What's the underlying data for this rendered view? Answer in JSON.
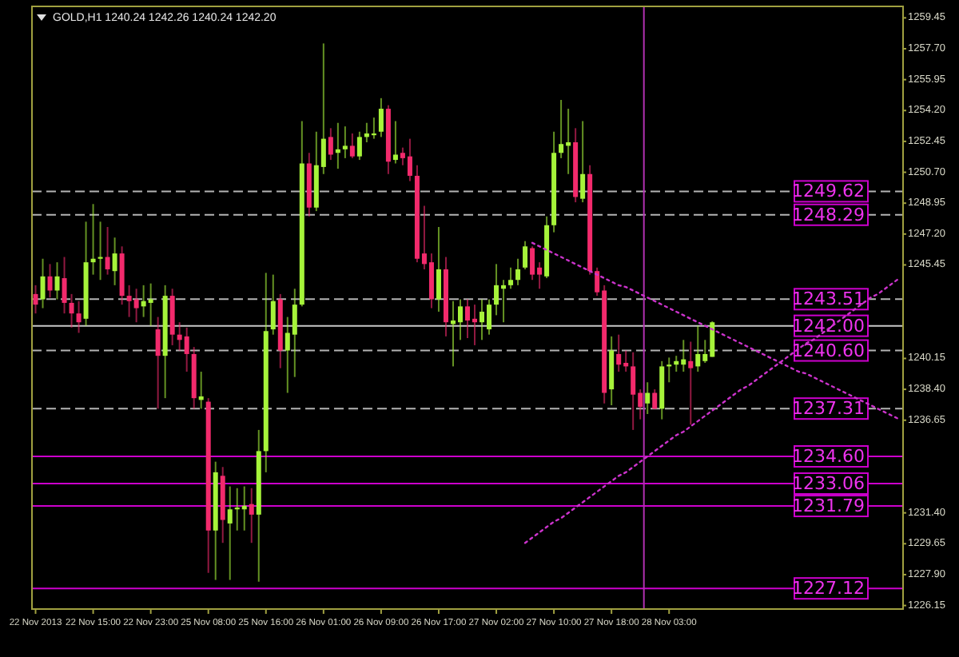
{
  "chart_data": {
    "type": "candlestick",
    "title": "GOLD,H1  1240.24 1242.26 1240.24 1242.20",
    "categories": [
      "22 Nov 2013",
      null,
      null,
      null,
      null,
      null,
      null,
      null,
      "22 Nov 15:00",
      null,
      null,
      null,
      null,
      null,
      null,
      null,
      "22 Nov 23:00",
      null,
      null,
      null,
      null,
      null,
      null,
      null,
      "25 Nov 08:00",
      null,
      null,
      null,
      null,
      null,
      null,
      null,
      "25 Nov 16:00",
      null,
      null,
      null,
      null,
      null,
      null,
      null,
      "26 Nov 01:00",
      null,
      null,
      null,
      null,
      null,
      null,
      null,
      "26 Nov 09:00",
      null,
      null,
      null,
      null,
      null,
      null,
      null,
      "26 Nov 17:00",
      null,
      null,
      null,
      null,
      null,
      null,
      null,
      "27 Nov 02:00",
      null,
      null,
      null,
      null,
      null,
      null,
      null,
      "27 Nov 10:00",
      null,
      null,
      null,
      null,
      null,
      null,
      null,
      "27 Nov 18:00",
      null,
      null,
      null,
      null,
      null,
      null,
      null,
      "28 Nov 03:00",
      null,
      null,
      null,
      null,
      null,
      null,
      null,
      null,
      null,
      null,
      null,
      null,
      null,
      null,
      null,
      null,
      null,
      null,
      null,
      null,
      null,
      null,
      null,
      null,
      null,
      null,
      null,
      null,
      null,
      null,
      null,
      null
    ],
    "colors": [
      "#f22a6c",
      "#a6f33a",
      "#f22a6c",
      "#a6f33a",
      "#f22a6c",
      "#f22a6c",
      "#f22a6c",
      "#a6f33a",
      "#a6f33a",
      "#a6f33a",
      "#f22a6c",
      "#a6f33a",
      "#f22a6c",
      "#f22a6c",
      "#f22a6c",
      "#a6f33a",
      "#a6f33a",
      "#f22a6c",
      "#a6f33a",
      "#f22a6c",
      "#f22a6c",
      "#f22a6c",
      "#f22a6c",
      "#a6f33a",
      "#f22a6c",
      "#a6f33a",
      "#f22a6c",
      "#a6f33a",
      "#a6f33a",
      "#a6f33a",
      "#f22a6c",
      "#a6f33a",
      "#a6f33a",
      "#a6f33a",
      "#f22a6c",
      "#a6f33a",
      "#a6f33a",
      "#a6f33a",
      "#f22a6c",
      "#a6f33a",
      "#a6f33a",
      "#f22a6c",
      "#a6f33a",
      "#a6f33a",
      "#f22a6c",
      "#a6f33a",
      "#a6f33a",
      "#a6f33a",
      "#a6f33a",
      "#f22a6c",
      "#a6f33a",
      "#f22a6c",
      "#f22a6c",
      "#f22a6c",
      "#f22a6c",
      "#f22a6c",
      "#a6f33a",
      "#f22a6c",
      "#a6f33a",
      "#a6f33a",
      "#f22a6c",
      "#f22a6c",
      "#a6f33a",
      "#a6f33a",
      "#a6f33a",
      "#a6f33a",
      "#a6f33a",
      "#a6f33a",
      "#a6f33a",
      "#f22a6c",
      "#f22a6c",
      "#a6f33a",
      "#a6f33a",
      "#a6f33a",
      "#a6f33a",
      "#f22a6c",
      "#a6f33a",
      "#f22a6c",
      "#f22a6c",
      "#f22a6c",
      "#a6f33a",
      "#f22a6c",
      "#f22a6c",
      "#f22a6c",
      "#f22a6c",
      "#a6f33a",
      "#f22a6c",
      "#a6f33a",
      "#a6f33a",
      "#a6f33a",
      "#a6f33a",
      "#f22a6c",
      "#a6f33a",
      "#a6f33a",
      "#a6f33a",
      null,
      null,
      null,
      null,
      null,
      null,
      null,
      null,
      null,
      null,
      null,
      null,
      null,
      null,
      null,
      null,
      null,
      null,
      null,
      null,
      null,
      null,
      null,
      null,
      null,
      null
    ],
    "ohlc": [
      [
        1243.8,
        1244.3,
        1242.7,
        1243.2
      ],
      [
        1243.5,
        1245.8,
        1243.0,
        1244.8
      ],
      [
        1244.8,
        1245.5,
        1243.6,
        1244.0
      ],
      [
        1244.0,
        1245.6,
        1243.5,
        1244.8
      ],
      [
        1244.7,
        1245.9,
        1242.7,
        1243.3
      ],
      [
        1243.3,
        1243.8,
        1241.9,
        1242.7
      ],
      [
        1242.7,
        1243.4,
        1241.6,
        1242.2
      ],
      [
        1242.4,
        1247.9,
        1242.0,
        1245.6
      ],
      [
        1245.6,
        1248.9,
        1244.9,
        1245.8
      ],
      [
        1245.8,
        1247.9,
        1244.6,
        1245.9
      ],
      [
        1245.9,
        1247.6,
        1244.9,
        1245.2
      ],
      [
        1245.1,
        1247.0,
        1244.3,
        1246.1
      ],
      [
        1246.1,
        1246.5,
        1243.2,
        1243.7
      ],
      [
        1243.7,
        1244.3,
        1242.5,
        1243.4
      ],
      [
        1243.5,
        1244.1,
        1242.2,
        1243.0
      ],
      [
        1243.1,
        1244.3,
        1242.5,
        1243.4
      ],
      [
        1243.3,
        1244.4,
        1242.0,
        1243.5
      ],
      [
        1241.8,
        1242.5,
        1237.3,
        1240.3
      ],
      [
        1240.3,
        1244.3,
        1237.9,
        1243.7
      ],
      [
        1243.7,
        1244.1,
        1240.9,
        1241.5
      ],
      [
        1241.5,
        1242.2,
        1240.6,
        1241.2
      ],
      [
        1241.4,
        1241.9,
        1239.4,
        1240.4
      ],
      [
        1240.4,
        1240.8,
        1237.3,
        1237.9
      ],
      [
        1237.8,
        1239.4,
        1237.3,
        1238.0
      ],
      [
        1237.7,
        1237.9,
        1228.0,
        1230.4
      ],
      [
        1230.4,
        1234.3,
        1227.6,
        1233.7
      ],
      [
        1233.5,
        1234.0,
        1229.7,
        1231.0
      ],
      [
        1230.8,
        1232.9,
        1227.6,
        1231.6
      ],
      [
        1231.6,
        1232.8,
        1230.4,
        1231.7
      ],
      [
        1231.6,
        1232.9,
        1230.4,
        1231.8
      ],
      [
        1231.9,
        1232.8,
        1229.7,
        1231.3
      ],
      [
        1231.3,
        1236.1,
        1227.5,
        1234.9
      ],
      [
        1234.9,
        1245.0,
        1233.7,
        1241.7
      ],
      [
        1241.8,
        1244.9,
        1241.5,
        1243.4
      ],
      [
        1243.5,
        1243.8,
        1239.6,
        1240.6
      ],
      [
        1240.6,
        1242.5,
        1238.2,
        1241.6
      ],
      [
        1241.5,
        1244.1,
        1239.1,
        1243.2
      ],
      [
        1243.2,
        1253.6,
        1243.1,
        1251.2
      ],
      [
        1251.2,
        1251.8,
        1248.2,
        1248.7
      ],
      [
        1248.7,
        1253.0,
        1248.5,
        1251.1
      ],
      [
        1251.0,
        1258.0,
        1250.6,
        1252.6
      ],
      [
        1252.7,
        1253.2,
        1251.4,
        1251.7
      ],
      [
        1251.8,
        1253.5,
        1250.9,
        1252.0
      ],
      [
        1252.0,
        1253.3,
        1251.5,
        1252.2
      ],
      [
        1252.2,
        1252.9,
        1251.5,
        1251.6
      ],
      [
        1251.6,
        1253.0,
        1251.4,
        1252.7
      ],
      [
        1252.7,
        1253.5,
        1252.4,
        1252.9
      ],
      [
        1252.8,
        1253.8,
        1252.6,
        1252.9
      ],
      [
        1253.0,
        1254.9,
        1252.7,
        1254.3
      ],
      [
        1254.3,
        1254.5,
        1250.6,
        1251.3
      ],
      [
        1251.4,
        1253.6,
        1251.2,
        1251.7
      ],
      [
        1251.8,
        1252.1,
        1251.1,
        1251.5
      ],
      [
        1251.6,
        1252.6,
        1250.2,
        1250.5
      ],
      [
        1250.5,
        1251.1,
        1245.6,
        1245.8
      ],
      [
        1246.1,
        1248.8,
        1245.2,
        1245.5
      ],
      [
        1245.6,
        1246.1,
        1243.0,
        1243.5
      ],
      [
        1243.5,
        1247.6,
        1242.8,
        1245.2
      ],
      [
        1245.2,
        1245.9,
        1241.4,
        1242.2
      ],
      [
        1242.1,
        1243.4,
        1239.7,
        1242.3
      ],
      [
        1242.2,
        1243.5,
        1241.2,
        1243.1
      ],
      [
        1243.1,
        1243.5,
        1241.3,
        1242.3
      ],
      [
        1242.4,
        1243.2,
        1240.9,
        1242.2
      ],
      [
        1242.2,
        1243.5,
        1241.2,
        1242.8
      ],
      [
        1241.8,
        1243.5,
        1241.5,
        1243.2
      ],
      [
        1243.2,
        1245.5,
        1242.6,
        1244.3
      ],
      [
        1244.1,
        1244.6,
        1242.2,
        1244.3
      ],
      [
        1244.3,
        1245.3,
        1244.1,
        1244.6
      ],
      [
        1244.6,
        1245.8,
        1244.3,
        1245.2
      ],
      [
        1245.3,
        1246.8,
        1245.2,
        1246.5
      ],
      [
        1246.4,
        1246.5,
        1244.6,
        1244.9
      ],
      [
        1245.3,
        1245.6,
        1244.1,
        1244.9
      ],
      [
        1244.8,
        1248.2,
        1244.7,
        1247.7
      ],
      [
        1247.7,
        1253.0,
        1247.3,
        1251.8
      ],
      [
        1251.8,
        1254.8,
        1251.5,
        1252.3
      ],
      [
        1252.2,
        1254.3,
        1250.6,
        1252.4
      ],
      [
        1252.4,
        1253.2,
        1249.0,
        1249.3
      ],
      [
        1249.2,
        1253.6,
        1249.0,
        1250.6
      ],
      [
        1250.6,
        1251.1,
        1244.9,
        1245.1
      ],
      [
        1245.1,
        1245.3,
        1243.7,
        1243.9
      ],
      [
        1244.0,
        1244.3,
        1237.6,
        1238.2
      ],
      [
        1238.4,
        1241.4,
        1237.5,
        1240.6
      ],
      [
        1240.4,
        1241.5,
        1239.4,
        1239.8
      ],
      [
        1239.9,
        1240.6,
        1239.4,
        1239.7
      ],
      [
        1239.7,
        1240.5,
        1236.1,
        1238.1
      ],
      [
        1238.2,
        1238.4,
        1236.7,
        1237.4
      ],
      [
        1237.6,
        1238.8,
        1237.0,
        1238.2
      ],
      [
        1238.2,
        1238.4,
        1237.3,
        1237.3
      ],
      [
        1237.3,
        1240.0,
        1236.7,
        1239.7
      ],
      [
        1239.7,
        1240.2,
        1238.8,
        1239.8
      ],
      [
        1239.8,
        1240.3,
        1239.4,
        1240.0
      ],
      [
        1239.8,
        1241.2,
        1239.4,
        1240.1
      ],
      [
        1240.0,
        1241.1,
        1236.4,
        1239.6
      ],
      [
        1239.7,
        1242.0,
        1239.4,
        1240.4
      ],
      [
        1240.0,
        1241.2,
        1239.9,
        1240.4
      ],
      [
        1240.24,
        1242.26,
        1240.24,
        1242.2
      ],
      null,
      null,
      null,
      null,
      null,
      null,
      null,
      null,
      null,
      null,
      null,
      null,
      null,
      null,
      null,
      null,
      null,
      null,
      null,
      null,
      null,
      null,
      null,
      null,
      null,
      null
    ],
    "series": [
      {
        "type": "line",
        "color": "#cc33cc",
        "line_style": "dotted",
        "values": [
          null,
          null,
          null,
          null,
          null,
          null,
          null,
          null,
          null,
          null,
          null,
          null,
          null,
          null,
          null,
          null,
          null,
          null,
          null,
          null,
          null,
          null,
          null,
          null,
          null,
          null,
          null,
          null,
          null,
          null,
          null,
          null,
          null,
          null,
          null,
          null,
          null,
          null,
          null,
          null,
          null,
          null,
          null,
          null,
          null,
          null,
          null,
          null,
          null,
          null,
          null,
          null,
          null,
          null,
          null,
          null,
          null,
          null,
          null,
          null,
          null,
          null,
          null,
          null,
          null,
          null,
          null,
          null,
          null,
          1246.7,
          1246.5,
          1246.3,
          1246.1,
          1245.9,
          1245.7,
          1245.5,
          1245.3,
          1245.1,
          1244.9,
          1244.7,
          1244.5,
          1244.3,
          1244.2,
          1244.0,
          1243.8,
          1243.6,
          1243.4,
          1243.2,
          1243.0,
          1242.8,
          1242.6,
          1242.4,
          1242.2,
          1242.0,
          1241.8,
          1241.6,
          1241.4,
          1241.2,
          1241.0,
          1240.8,
          1240.6,
          1240.4,
          1240.2,
          1240.0,
          1239.8,
          1239.6,
          1239.4,
          1239.3,
          1239.1,
          1238.9,
          1238.7,
          1238.5,
          1238.3,
          1238.1,
          1237.9,
          1237.7,
          1237.5,
          1237.3,
          1237.1,
          1236.9,
          1236.7
        ]
      },
      {
        "type": "line",
        "color": "#cc33cc",
        "line_style": "dotted",
        "values": [
          null,
          null,
          null,
          null,
          null,
          null,
          null,
          null,
          null,
          null,
          null,
          null,
          null,
          null,
          null,
          null,
          null,
          null,
          null,
          null,
          null,
          null,
          null,
          null,
          null,
          null,
          null,
          null,
          null,
          null,
          null,
          null,
          null,
          null,
          null,
          null,
          null,
          null,
          null,
          null,
          null,
          null,
          null,
          null,
          null,
          null,
          null,
          null,
          null,
          null,
          null,
          null,
          null,
          null,
          null,
          null,
          null,
          null,
          null,
          null,
          null,
          null,
          null,
          null,
          null,
          null,
          null,
          null,
          1229.7,
          1230.0,
          1230.3,
          1230.6,
          1230.9,
          1231.1,
          1231.4,
          1231.7,
          1232.0,
          1232.3,
          1232.6,
          1232.9,
          1233.2,
          1233.5,
          1233.7,
          1234.0,
          1234.3,
          1234.6,
          1234.9,
          1235.2,
          1235.5,
          1235.8,
          1236.0,
          1236.3,
          1236.6,
          1236.9,
          1237.2,
          1237.5,
          1237.8,
          1238.1,
          1238.4,
          1238.6,
          1238.9,
          1239.2,
          1239.5,
          1239.8,
          1240.1,
          1240.4,
          1240.7,
          1241.0,
          1241.2,
          1241.5,
          1241.8,
          1242.1,
          1242.4,
          1242.7,
          1243.0,
          1243.3,
          1243.6,
          1243.8,
          1244.1,
          1244.4,
          1244.7
        ]
      }
    ],
    "ylim": [
      1225.95,
      1260.1
    ],
    "yticks": [
      {
        "value": 1259.45,
        "label": "1259.45"
      },
      {
        "value": 1257.7,
        "label": "1257.70"
      },
      {
        "value": 1255.95,
        "label": "1255.95"
      },
      {
        "value": 1254.2,
        "label": "1254.20"
      },
      {
        "value": 1252.45,
        "label": "1252.45"
      },
      {
        "value": 1250.7,
        "label": "1250.70"
      },
      {
        "value": 1248.95,
        "label": "1248.95"
      },
      {
        "value": 1247.2,
        "label": "1247.20"
      },
      {
        "value": 1245.45,
        "label": "1245.45"
      },
      {
        "value": 1240.15,
        "label": "1240.15"
      },
      {
        "value": 1238.4,
        "label": "1238.40"
      },
      {
        "value": 1236.65,
        "label": "1236.65"
      },
      {
        "value": 1231.4,
        "label": "1231.40"
      },
      {
        "value": 1229.65,
        "label": "1229.65"
      },
      {
        "value": 1227.9,
        "label": "1227.90"
      },
      {
        "value": 1226.15,
        "label": "1226.15"
      }
    ],
    "ref_lines": [
      {
        "axis": "y",
        "value": 1249.62,
        "label": "1249.62",
        "color": "#b4b4b4",
        "line_style": "dashed"
      },
      {
        "axis": "y",
        "value": 1248.29,
        "label": "1248.29",
        "color": "#b4b4b4",
        "line_style": "dashed"
      },
      {
        "axis": "y",
        "value": 1243.51,
        "label": "1243.51",
        "color": "#b4b4b4",
        "line_style": "dashed"
      },
      {
        "axis": "y",
        "value": 1242.0,
        "label": "1242.00",
        "color": "#c8c8c8",
        "line_style": "solid"
      },
      {
        "axis": "y",
        "value": 1240.6,
        "label": "1240.60",
        "color": "#b4b4b4",
        "line_style": "dashed"
      },
      {
        "axis": "y",
        "value": 1237.31,
        "label": "1237.31",
        "color": "#b4b4b4",
        "line_style": "dashed"
      },
      {
        "axis": "y",
        "value": 1234.6,
        "label": "1234.60",
        "color": "#cc00cc",
        "line_style": "solid"
      },
      {
        "axis": "y",
        "value": 1233.06,
        "label": "1233.06",
        "color": "#cc00cc",
        "line_style": "solid"
      },
      {
        "axis": "y",
        "value": 1231.79,
        "label": "1231.79",
        "color": "#cc00cc",
        "line_style": "solid"
      },
      {
        "axis": "y",
        "value": 1227.12,
        "label": "1227.12",
        "color": "#cc00cc",
        "line_style": "solid"
      }
    ]
  }
}
